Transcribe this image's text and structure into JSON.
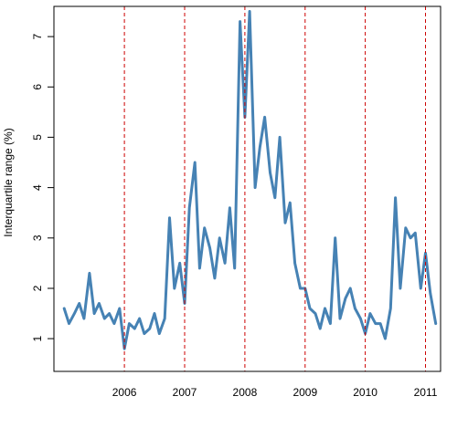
{
  "chart_data": {
    "type": "line",
    "title": "",
    "xlabel": "",
    "ylabel": "Interquartile range (%)",
    "x_tick_labels": [
      "2006",
      "2007",
      "2008",
      "2009",
      "2010",
      "2011"
    ],
    "y_ticks": [
      1,
      2,
      3,
      4,
      5,
      6,
      7
    ],
    "ylim": [
      0.35,
      7.6
    ],
    "xlim": [
      2005.33,
      2011.75
    ],
    "grid": false,
    "legend": "none",
    "series": [
      {
        "color": "#4682B4",
        "x": [
          2005.5,
          2005.58,
          2005.67,
          2005.75,
          2005.83,
          2005.92,
          2006.0,
          2006.08,
          2006.17,
          2006.25,
          2006.33,
          2006.42,
          2006.5,
          2006.58,
          2006.67,
          2006.75,
          2006.83,
          2006.92,
          2007.0,
          2007.08,
          2007.17,
          2007.25,
          2007.33,
          2007.42,
          2007.5,
          2007.58,
          2007.67,
          2007.75,
          2007.83,
          2007.92,
          2008.0,
          2008.08,
          2008.17,
          2008.25,
          2008.33,
          2008.42,
          2008.5,
          2008.58,
          2008.67,
          2008.75,
          2008.83,
          2008.92,
          2009.0,
          2009.08,
          2009.17,
          2009.25,
          2009.33,
          2009.42,
          2009.5,
          2009.58,
          2009.67,
          2009.75,
          2009.83,
          2009.92,
          2010.0,
          2010.08,
          2010.17,
          2010.25,
          2010.33,
          2010.42,
          2010.5,
          2010.58,
          2010.67,
          2010.75,
          2010.83,
          2010.92,
          2011.0,
          2011.08,
          2011.17,
          2011.25,
          2011.33,
          2011.42,
          2011.5,
          2011.58,
          2011.67
        ],
        "values": [
          1.6,
          1.3,
          1.5,
          1.7,
          1.4,
          2.3,
          1.5,
          1.7,
          1.4,
          1.5,
          1.3,
          1.6,
          0.8,
          1.3,
          1.2,
          1.4,
          1.1,
          1.2,
          1.5,
          1.1,
          1.4,
          3.4,
          2.0,
          2.5,
          1.7,
          3.6,
          4.5,
          2.4,
          3.2,
          2.8,
          2.2,
          3.0,
          2.5,
          3.6,
          2.4,
          7.3,
          5.4,
          7.5,
          4.0,
          4.8,
          5.4,
          4.3,
          3.8,
          5.0,
          3.3,
          3.7,
          2.5,
          2.0,
          2.0,
          1.6,
          1.5,
          1.2,
          1.6,
          1.3,
          3.0,
          1.4,
          1.8,
          2.0,
          1.6,
          1.4,
          1.1,
          1.5,
          1.3,
          1.3,
          1.0,
          1.6,
          3.8,
          2.0,
          3.2,
          3.0,
          3.1,
          2.0,
          2.7,
          1.9,
          1.3
        ]
      }
    ],
    "vlines": {
      "color": "#CC0000",
      "style": "dashed",
      "x": [
        2006.5,
        2007.5,
        2008.5,
        2009.5,
        2010.5,
        2011.5
      ]
    }
  }
}
